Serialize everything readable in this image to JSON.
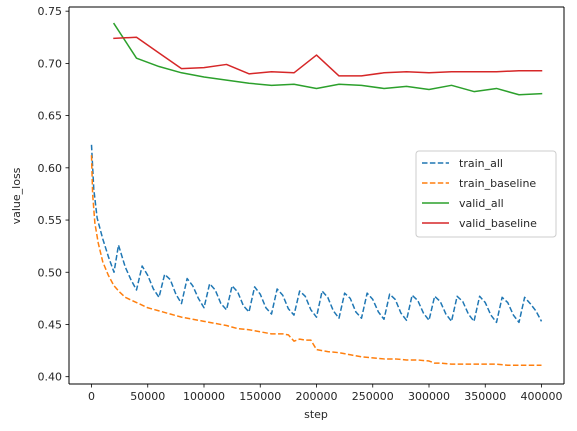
{
  "chart_data": {
    "type": "line",
    "title": "",
    "xlabel": "step",
    "ylabel": "value_loss",
    "xlim": [
      -20000,
      420000
    ],
    "ylim": [
      0.393,
      0.754
    ],
    "x_ticks": [
      0,
      50000,
      100000,
      150000,
      200000,
      250000,
      300000,
      350000,
      400000
    ],
    "y_ticks": [
      0.4,
      0.45,
      0.5,
      0.55,
      0.6,
      0.65,
      0.7,
      0.75
    ],
    "x_tick_labels": [
      "0",
      "50000",
      "100000",
      "150000",
      "200000",
      "250000",
      "300000",
      "350000",
      "400000"
    ],
    "y_tick_labels": [
      "0.40",
      "0.45",
      "0.50",
      "0.55",
      "0.60",
      "0.65",
      "0.70",
      "0.75"
    ],
    "grid": false,
    "legend_position": "center-right",
    "series": [
      {
        "name": "train_all",
        "color": "#1f77b4",
        "style": "dashed",
        "x": [
          0,
          2000,
          5000,
          10000,
          15000,
          20000,
          24000,
          30000,
          35000,
          40000,
          45000,
          50000,
          55000,
          60000,
          65000,
          70000,
          75000,
          80000,
          85000,
          90000,
          95000,
          100000,
          105000,
          110000,
          115000,
          120000,
          125000,
          130000,
          135000,
          140000,
          145000,
          150000,
          155000,
          160000,
          165000,
          170000,
          175000,
          180000,
          185000,
          190000,
          195000,
          200000,
          205000,
          210000,
          215000,
          220000,
          225000,
          230000,
          235000,
          240000,
          245000,
          250000,
          255000,
          260000,
          265000,
          270000,
          275000,
          280000,
          285000,
          290000,
          295000,
          300000,
          305000,
          310000,
          315000,
          320000,
          325000,
          330000,
          335000,
          340000,
          345000,
          350000,
          355000,
          360000,
          365000,
          370000,
          375000,
          380000,
          385000,
          390000,
          395000,
          400000
        ],
        "y": [
          0.622,
          0.58,
          0.552,
          0.532,
          0.515,
          0.5,
          0.526,
          0.505,
          0.493,
          0.483,
          0.506,
          0.497,
          0.484,
          0.476,
          0.498,
          0.493,
          0.479,
          0.47,
          0.494,
          0.487,
          0.475,
          0.466,
          0.489,
          0.483,
          0.47,
          0.464,
          0.487,
          0.481,
          0.468,
          0.462,
          0.486,
          0.479,
          0.466,
          0.46,
          0.484,
          0.478,
          0.465,
          0.459,
          0.482,
          0.477,
          0.464,
          0.457,
          0.482,
          0.476,
          0.463,
          0.456,
          0.48,
          0.475,
          0.462,
          0.456,
          0.48,
          0.474,
          0.462,
          0.455,
          0.479,
          0.474,
          0.461,
          0.454,
          0.478,
          0.473,
          0.461,
          0.454,
          0.477,
          0.472,
          0.46,
          0.453,
          0.477,
          0.472,
          0.46,
          0.453,
          0.477,
          0.471,
          0.459,
          0.452,
          0.476,
          0.471,
          0.459,
          0.452,
          0.476,
          0.47,
          0.463,
          0.453
        ]
      },
      {
        "name": "train_baseline",
        "color": "#ff7f0e",
        "style": "dashed",
        "x": [
          0,
          1000,
          3000,
          6000,
          10000,
          15000,
          20000,
          25000,
          30000,
          40000,
          50000,
          60000,
          70000,
          80000,
          90000,
          100000,
          110000,
          120000,
          130000,
          140000,
          150000,
          160000,
          170000,
          175000,
          180000,
          185000,
          190000,
          195000,
          200000,
          205000,
          210000,
          220000,
          230000,
          240000,
          250000,
          260000,
          270000,
          280000,
          290000,
          300000,
          305000,
          310000,
          320000,
          330000,
          340000,
          350000,
          360000,
          370000,
          380000,
          390000,
          400000
        ],
        "y": [
          0.612,
          0.575,
          0.547,
          0.528,
          0.51,
          0.497,
          0.487,
          0.481,
          0.476,
          0.471,
          0.466,
          0.463,
          0.46,
          0.457,
          0.455,
          0.453,
          0.451,
          0.449,
          0.446,
          0.445,
          0.443,
          0.441,
          0.441,
          0.44,
          0.434,
          0.436,
          0.435,
          0.435,
          0.426,
          0.425,
          0.424,
          0.423,
          0.421,
          0.419,
          0.418,
          0.417,
          0.417,
          0.416,
          0.416,
          0.415,
          0.413,
          0.413,
          0.412,
          0.412,
          0.412,
          0.412,
          0.412,
          0.411,
          0.411,
          0.411,
          0.411
        ]
      },
      {
        "name": "valid_all",
        "color": "#2ca02c",
        "style": "solid",
        "x": [
          20000,
          40000,
          60000,
          80000,
          100000,
          120000,
          140000,
          160000,
          180000,
          200000,
          220000,
          240000,
          260000,
          280000,
          300000,
          320000,
          340000,
          360000,
          380000,
          400000
        ],
        "y": [
          0.738,
          0.705,
          0.697,
          0.691,
          0.687,
          0.684,
          0.681,
          0.679,
          0.68,
          0.676,
          0.68,
          0.679,
          0.676,
          0.678,
          0.675,
          0.679,
          0.673,
          0.676,
          0.67,
          0.671
        ]
      },
      {
        "name": "valid_baseline",
        "color": "#d62728",
        "style": "solid",
        "x": [
          20000,
          40000,
          60000,
          80000,
          100000,
          120000,
          140000,
          160000,
          180000,
          200000,
          220000,
          240000,
          260000,
          280000,
          300000,
          320000,
          340000,
          360000,
          380000,
          400000
        ],
        "y": [
          0.724,
          0.725,
          0.71,
          0.695,
          0.696,
          0.699,
          0.69,
          0.692,
          0.691,
          0.708,
          0.688,
          0.688,
          0.691,
          0.692,
          0.691,
          0.692,
          0.692,
          0.692,
          0.693,
          0.693
        ]
      }
    ]
  }
}
